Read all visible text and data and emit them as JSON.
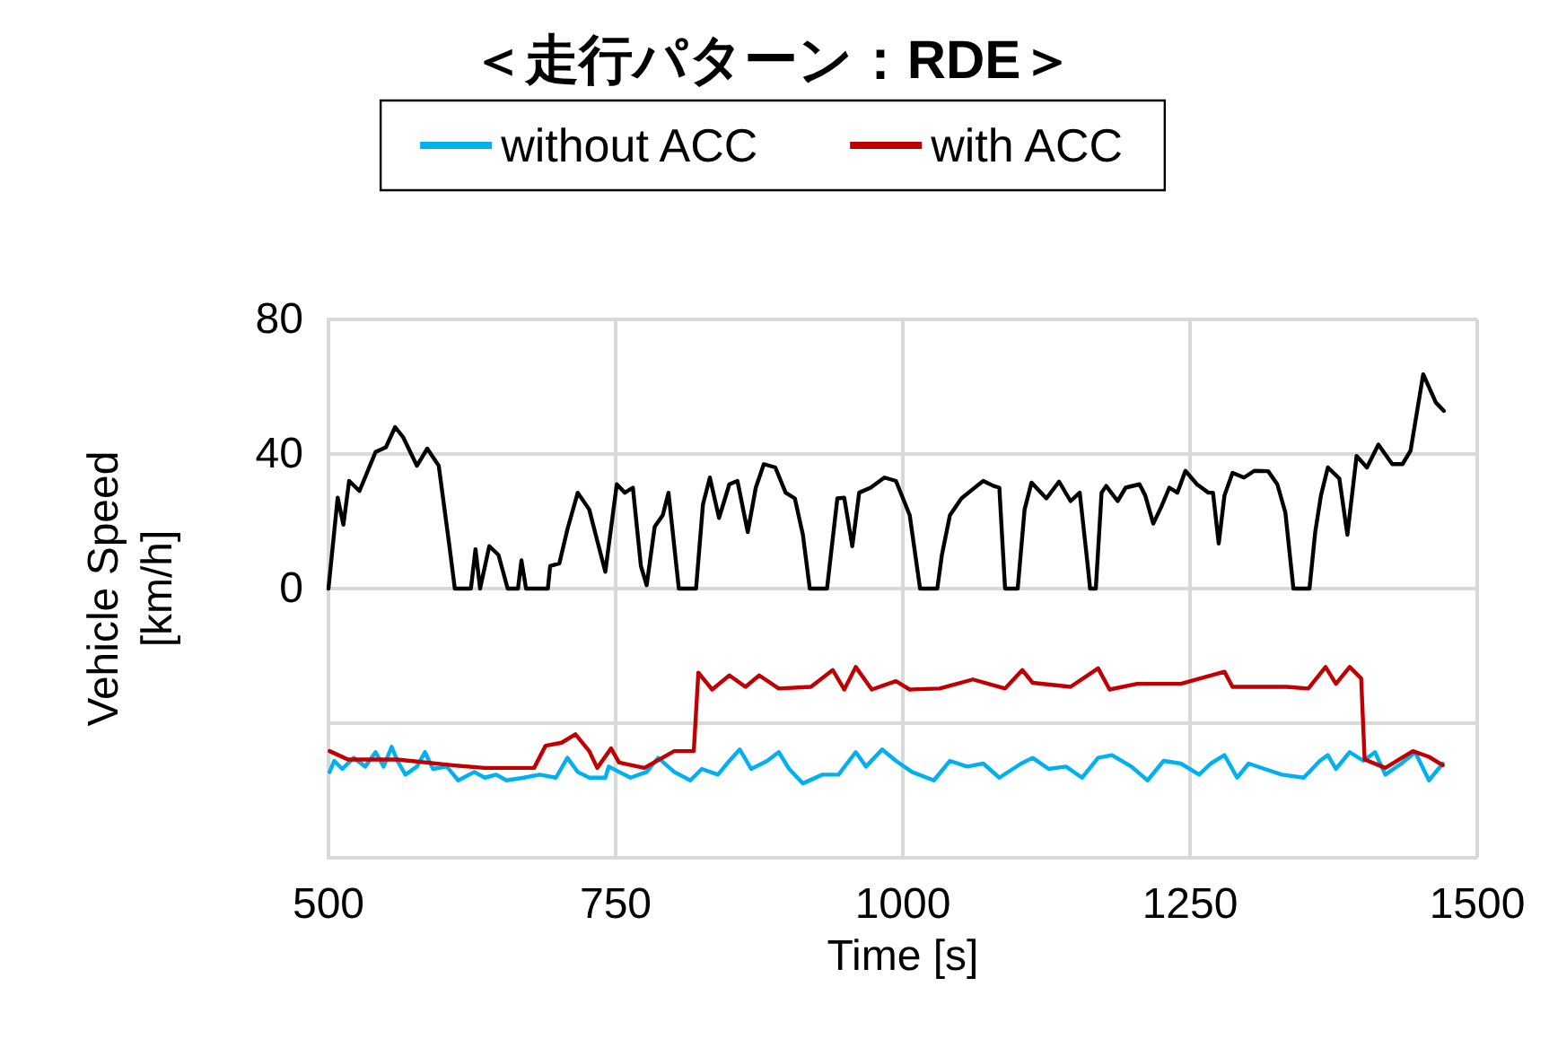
{
  "chart_data": {
    "type": "line",
    "title": "＜走行パターン：RDE＞",
    "xlabel": "Time [s]",
    "ylabel": "Vehicle Speed\n[km/h]",
    "xlim": [
      500,
      1500
    ],
    "xticks": [
      500,
      750,
      1000,
      1250,
      1500
    ],
    "ylim": [
      -80,
      80
    ],
    "yticks": [
      {
        "value": -80,
        "label": null
      },
      {
        "value": -40,
        "label": null
      },
      0,
      40,
      80
    ],
    "grid": true,
    "legend": "top",
    "marker": "none",
    "line_style": "solid",
    "series": [
      {
        "color": "#000000",
        "x": [
          500,
          508,
          513,
          518,
          527,
          541,
          550,
          558,
          565,
          577,
          586,
          596,
          605,
          610,
          624,
          628,
          632,
          640,
          648,
          656,
          665,
          668,
          672,
          691,
          693,
          701,
          708,
          717,
          727,
          734,
          741,
          751,
          758,
          765,
          772,
          777,
          784,
          791,
          796,
          805,
          820,
          826,
          832,
          840,
          849,
          856,
          865,
          872,
          879,
          889,
          898,
          906,
          913,
          919,
          934,
          943,
          949,
          956,
          962,
          972,
          984,
          994,
          1006,
          1015,
          1030,
          1034,
          1041,
          1051,
          1060,
          1070,
          1079,
          1084,
          1089,
          1100,
          1106,
          1112,
          1125,
          1136,
          1146,
          1154,
          1161,
          1163,
          1168,
          1173,
          1177,
          1187,
          1194,
          1206,
          1211,
          1218,
          1225,
          1232,
          1239,
          1246,
          1256,
          1266,
          1270,
          1275,
          1280,
          1287,
          1297,
          1306,
          1318,
          1326,
          1333,
          1340,
          1354,
          1359,
          1364,
          1370,
          1380,
          1387,
          1395,
          1404,
          1414,
          1426,
          1435,
          1442,
          1453,
          1464,
          1471
        ],
        "values": [
          0,
          27,
          19,
          32,
          29,
          40.6,
          42,
          48,
          45,
          36.5,
          41.6,
          36.5,
          13.4,
          0,
          0,
          11.7,
          0,
          12.6,
          10,
          0,
          0,
          8.4,
          0,
          0,
          6.7,
          7.5,
          17.6,
          28.5,
          23.5,
          14.2,
          5,
          31,
          28.5,
          30,
          6.7,
          1,
          18.4,
          21.8,
          28.5,
          0,
          0,
          25,
          33,
          21,
          31,
          32,
          16.8,
          30,
          37,
          36,
          28.5,
          26.8,
          16,
          0,
          0,
          26.8,
          27,
          12.6,
          28.5,
          30,
          33,
          32,
          21.8,
          0,
          0,
          10,
          21.8,
          26.8,
          29.3,
          32,
          30.5,
          30,
          0,
          0,
          23.5,
          31.5,
          26.8,
          31.8,
          26,
          28.5,
          6.7,
          0,
          0,
          28.5,
          30.5,
          26,
          30,
          31,
          27.7,
          19.3,
          24.3,
          30,
          28.5,
          35,
          31,
          28.5,
          28.5,
          13.4,
          27.7,
          34.4,
          33,
          35,
          34.9,
          31,
          22.6,
          0,
          0,
          16.8,
          27.7,
          36,
          32.7,
          16,
          39.4,
          36,
          42.8,
          37,
          37,
          41,
          63.7,
          55.3,
          52.8
        ]
      },
      {
        "name": "without ACC",
        "color": "#00b0f0",
        "x": [
          501,
          505,
          512,
          522,
          532,
          541,
          548,
          555,
          560,
          567,
          577,
          584,
          591,
          603,
          613,
          627,
          636,
          646,
          655,
          670,
          684,
          698,
          708,
          717,
          727,
          741,
          744,
          753,
          763,
          777,
          787,
          801,
          815,
          825,
          839,
          849,
          858,
          868,
          882,
          892,
          901,
          913,
          930,
          944,
          959,
          968,
          982,
          994,
          1008,
          1027,
          1041,
          1056,
          1070,
          1084,
          1103,
          1113,
          1127,
          1142,
          1156,
          1170,
          1182,
          1199,
          1213,
          1227,
          1242,
          1258,
          1268,
          1280,
          1291,
          1301,
          1315,
          1330,
          1349,
          1363,
          1370,
          1377,
          1389,
          1401,
          1411,
          1420,
          1434,
          1446,
          1458,
          1470
        ],
        "values": [
          -54.5,
          -51.2,
          -53.6,
          -50.3,
          -52.9,
          -48.6,
          -52.9,
          -47,
          -51.2,
          -55.3,
          -52.9,
          -48.6,
          -53.6,
          -52.9,
          -57,
          -54.5,
          -56.2,
          -55.3,
          -57,
          -56.2,
          -55.3,
          -56.2,
          -50.3,
          -54.5,
          -56.2,
          -56.2,
          -52.9,
          -54.5,
          -56.2,
          -54.5,
          -50.3,
          -54.5,
          -57,
          -53.6,
          -55.3,
          -51.2,
          -47.8,
          -53.6,
          -51.2,
          -48.6,
          -53.6,
          -57.9,
          -55.3,
          -55.3,
          -48.6,
          -52.9,
          -47.8,
          -51.2,
          -54.5,
          -57,
          -51.2,
          -52.9,
          -52,
          -56.2,
          -52,
          -50.3,
          -53.6,
          -52.9,
          -56.2,
          -50.3,
          -49.5,
          -52.9,
          -57,
          -51.2,
          -52,
          -55.3,
          -52,
          -49.5,
          -56.2,
          -52,
          -53.6,
          -55.3,
          -56.2,
          -51.2,
          -49.5,
          -53.6,
          -48.6,
          -51.2,
          -48.6,
          -55.3,
          -52,
          -48.6,
          -57,
          -52
        ]
      },
      {
        "name": "with ACC",
        "color": "#c00000",
        "x": [
          501,
          517,
          560,
          608,
          636,
          679,
          689,
          703,
          715,
          727,
          734,
          746,
          753,
          775,
          801,
          818,
          822,
          834,
          849,
          863,
          875,
          892,
          920,
          939,
          949,
          959,
          973,
          994,
          1006,
          1032,
          1061,
          1089,
          1104,
          1113,
          1146,
          1170,
          1180,
          1204,
          1242,
          1280,
          1287,
          1334,
          1353,
          1368,
          1377,
          1389,
          1399,
          1402,
          1420,
          1444,
          1458,
          1470
        ],
        "values": [
          -48.3,
          -50.8,
          -50.8,
          -52.5,
          -53.3,
          -53.3,
          -46.7,
          -45.8,
          -43.3,
          -48.3,
          -53.3,
          -47.5,
          -51.7,
          -53.3,
          -48.3,
          -48.3,
          -25,
          -30,
          -25.8,
          -29.2,
          -25.8,
          -29.7,
          -29.2,
          -24.2,
          -30,
          -23.3,
          -30,
          -27.5,
          -30,
          -29.7,
          -27,
          -29.7,
          -24.2,
          -28,
          -29.2,
          -23.7,
          -30,
          -28.3,
          -28.3,
          -24.7,
          -29.2,
          -29.2,
          -29.7,
          -23.3,
          -28.3,
          -23.3,
          -26.7,
          -50.8,
          -53.3,
          -48.3,
          -50,
          -52.5
        ]
      }
    ]
  }
}
